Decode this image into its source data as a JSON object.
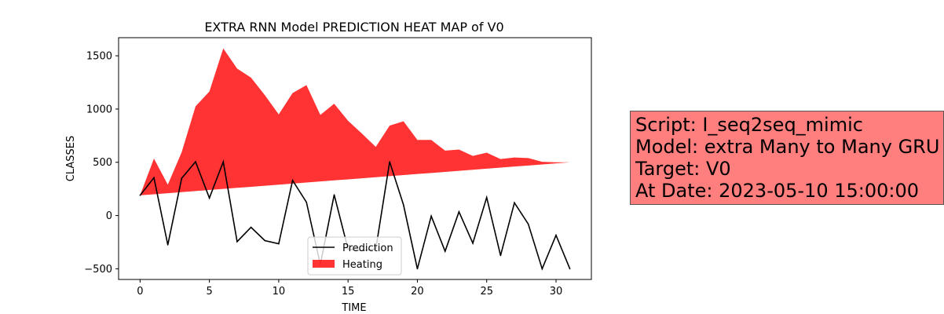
{
  "chart_data": {
    "type": "line",
    "title": "EXTRA RNN Model PREDICTION HEAT MAP of V0",
    "xlabel": "TIME",
    "ylabel": "CLASSES",
    "xlim": [
      -1.55,
      32.55
    ],
    "ylim": [
      -600,
      1670
    ],
    "xticks": [
      0,
      5,
      10,
      15,
      20,
      25,
      30
    ],
    "yticks": [
      -500,
      0,
      500,
      1000,
      1500
    ],
    "legend_position": "lower-center",
    "grid": false,
    "series": [
      {
        "name": "Prediction",
        "type": "line",
        "color": "#000000",
        "x": [
          0,
          1,
          2,
          3,
          4,
          5,
          6,
          7,
          8,
          9,
          10,
          11,
          12,
          13,
          14,
          15,
          16,
          17,
          18,
          19,
          20,
          21,
          22,
          23,
          24,
          25,
          26,
          27,
          28,
          29,
          30,
          31
        ],
        "values": [
          190,
          355,
          -275,
          350,
          505,
          165,
          505,
          -245,
          -110,
          -235,
          -265,
          330,
          125,
          -460,
          195,
          -315,
          -330,
          -315,
          505,
          100,
          -500,
          -5,
          -335,
          35,
          -260,
          170,
          -375,
          120,
          -80,
          -500,
          -185,
          -500
        ]
      },
      {
        "name": "Heating",
        "type": "area",
        "color": "#ff0000",
        "opacity": 0.8,
        "x": [
          0,
          1,
          2,
          3,
          4,
          5,
          6,
          7,
          8,
          9,
          10,
          11,
          12,
          13,
          14,
          15,
          16,
          17,
          18,
          19,
          20,
          21,
          22,
          23,
          24,
          25,
          26,
          27,
          28,
          29,
          30,
          31
        ],
        "lower": [
          190,
          200,
          210,
          220,
          230,
          240,
          250,
          260,
          270,
          280,
          290,
          300,
          310,
          320,
          330,
          340,
          350,
          360,
          370,
          380,
          390,
          400,
          410,
          420,
          430,
          440,
          450,
          460,
          470,
          480,
          490,
          500
        ],
        "upper": [
          190,
          535,
          290,
          595,
          1025,
          1165,
          1570,
          1380,
          1295,
          1130,
          950,
          1150,
          1225,
          945,
          1050,
          890,
          770,
          645,
          845,
          885,
          710,
          710,
          610,
          620,
          560,
          590,
          530,
          545,
          540,
          505,
          500,
          500
        ]
      }
    ]
  },
  "info_box": {
    "line1": "Script: I_seq2seq_mimic",
    "line2": "Model: extra Many to Many GRU",
    "line3": "Target: V0",
    "line4": "At Date: 2023-05-10 15:00:00"
  }
}
